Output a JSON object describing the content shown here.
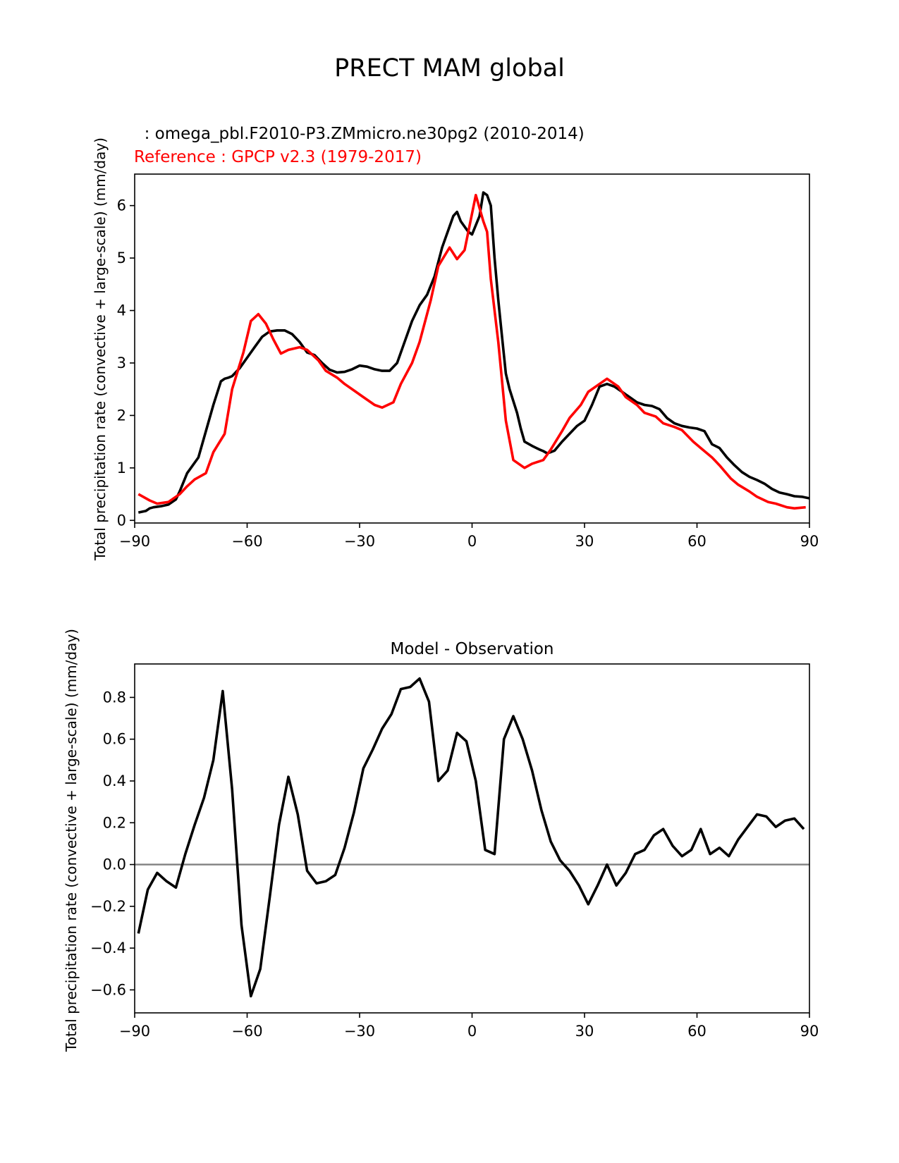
{
  "figure_title": "PRECT MAM global",
  "chart_data": [
    {
      "type": "line",
      "test_label": "  : omega_pbl.F2010-P3.ZMmicro.ne30pg2 (2010-2014)",
      "ref_label": "Reference : GPCP v2.3 (1979-2017)",
      "ylabel": "Total precipitation rate (convective + large-scale) (mm/day)",
      "xlim": [
        -90,
        90
      ],
      "ylim": [
        -0.05,
        6.6
      ],
      "xticks": [
        -90,
        -60,
        -30,
        0,
        30,
        60,
        90
      ],
      "xtick_labels": [
        "−90",
        "−60",
        "−30",
        "0",
        "30",
        "60",
        "90"
      ],
      "yticks": [
        0,
        1,
        2,
        3,
        4,
        5,
        6
      ],
      "ytick_labels": [
        "0",
        "1",
        "2",
        "3",
        "4",
        "5",
        "6"
      ],
      "series": [
        {
          "name": "test",
          "color": "#000000",
          "x": [
            -89,
            -87,
            -86,
            -85,
            -83,
            -81,
            -79,
            -78,
            -76,
            -75,
            -73,
            -71,
            -69,
            -67,
            -66,
            -65,
            -64,
            -62,
            -60,
            -58,
            -56,
            -54,
            -52,
            -50,
            -48,
            -46,
            -44,
            -42,
            -40,
            -38,
            -36,
            -34,
            -32,
            -30,
            -28,
            -26,
            -24,
            -22,
            -20,
            -18,
            -16,
            -14,
            -12,
            -10,
            -8,
            -6,
            -5,
            -4,
            -3,
            -1,
            0,
            2,
            3,
            4,
            5,
            6,
            7,
            8,
            9,
            10,
            12,
            13,
            14,
            16,
            18,
            19,
            20,
            21,
            22,
            24,
            26,
            28,
            30,
            32,
            34,
            36,
            38,
            40,
            42,
            44,
            46,
            48,
            50,
            52,
            54,
            56,
            58,
            60,
            62,
            64,
            66,
            68,
            70,
            72,
            74,
            76,
            78,
            80,
            82,
            84,
            86,
            88,
            90
          ],
          "y": [
            0.15,
            0.18,
            0.23,
            0.25,
            0.27,
            0.3,
            0.4,
            0.55,
            0.9,
            1.0,
            1.2,
            1.7,
            2.2,
            2.65,
            2.7,
            2.72,
            2.75,
            2.9,
            3.1,
            3.3,
            3.5,
            3.6,
            3.62,
            3.62,
            3.55,
            3.4,
            3.2,
            3.15,
            3.0,
            2.87,
            2.82,
            2.83,
            2.88,
            2.95,
            2.93,
            2.88,
            2.85,
            2.85,
            3.0,
            3.4,
            3.8,
            4.1,
            4.3,
            4.65,
            5.2,
            5.6,
            5.8,
            5.88,
            5.7,
            5.5,
            5.45,
            5.8,
            6.25,
            6.2,
            6.0,
            5.0,
            4.2,
            3.5,
            2.8,
            2.5,
            2.05,
            1.75,
            1.5,
            1.42,
            1.35,
            1.32,
            1.28,
            1.3,
            1.33,
            1.5,
            1.65,
            1.8,
            1.9,
            2.2,
            2.55,
            2.6,
            2.55,
            2.45,
            2.35,
            2.25,
            2.2,
            2.18,
            2.12,
            1.95,
            1.85,
            1.8,
            1.77,
            1.75,
            1.7,
            1.45,
            1.38,
            1.2,
            1.05,
            0.92,
            0.83,
            0.77,
            0.7,
            0.6,
            0.53,
            0.5,
            0.46,
            0.45,
            0.42
          ]
        },
        {
          "name": "Reference",
          "color": "#ff0000",
          "x": [
            -89,
            -86,
            -84,
            -81,
            -78,
            -76,
            -74,
            -71,
            -69,
            -66,
            -64,
            -61,
            -59,
            -57,
            -55,
            -53,
            -51,
            -49,
            -46,
            -44,
            -41,
            -39,
            -36,
            -34,
            -31,
            -29,
            -26,
            -24,
            -21,
            -19,
            -16,
            -14,
            -11,
            -9,
            -6,
            -4,
            -2,
            1,
            3,
            4,
            5,
            7,
            9,
            11,
            14,
            16,
            19,
            21,
            24,
            26,
            29,
            31,
            34,
            36,
            39,
            41,
            44,
            46,
            49,
            51,
            54,
            56,
            59,
            61,
            64,
            66,
            69,
            71,
            74,
            76,
            79,
            81,
            84,
            86,
            89
          ],
          "y": [
            0.5,
            0.38,
            0.32,
            0.35,
            0.5,
            0.65,
            0.78,
            0.9,
            1.3,
            1.65,
            2.5,
            3.2,
            3.8,
            3.93,
            3.75,
            3.45,
            3.18,
            3.25,
            3.3,
            3.25,
            3.05,
            2.85,
            2.72,
            2.6,
            2.45,
            2.35,
            2.2,
            2.15,
            2.25,
            2.6,
            3.0,
            3.4,
            4.2,
            4.85,
            5.2,
            4.98,
            5.15,
            6.2,
            5.7,
            5.5,
            4.6,
            3.4,
            1.9,
            1.15,
            1.0,
            1.08,
            1.15,
            1.35,
            1.7,
            1.95,
            2.2,
            2.45,
            2.6,
            2.7,
            2.55,
            2.35,
            2.2,
            2.05,
            1.98,
            1.85,
            1.78,
            1.72,
            1.5,
            1.38,
            1.2,
            1.05,
            0.8,
            0.68,
            0.55,
            0.45,
            0.35,
            0.32,
            0.25,
            0.23,
            0.25
          ]
        }
      ]
    },
    {
      "type": "line",
      "title": "Model - Observation",
      "ylabel": "Total precipitation rate (convective + large-scale) (mm/day)",
      "xlim": [
        -90,
        90
      ],
      "ylim": [
        -0.71,
        0.96
      ],
      "xticks": [
        -90,
        -60,
        -30,
        0,
        30,
        60,
        90
      ],
      "xtick_labels": [
        "−90",
        "−60",
        "−30",
        "0",
        "30",
        "60",
        "90"
      ],
      "yticks": [
        -0.6,
        -0.4,
        -0.2,
        0.0,
        0.2,
        0.4,
        0.6,
        0.8
      ],
      "ytick_labels": [
        "−0.6",
        "−0.4",
        "−0.2",
        "0.0",
        "0.2",
        "0.4",
        "0.6",
        "0.8"
      ],
      "zero_line_color": "#808080",
      "series": [
        {
          "name": "difference",
          "color": "#000000",
          "x": [
            -89,
            -86.5,
            -84,
            -81.5,
            -79,
            -76.5,
            -74,
            -71.5,
            -69,
            -66.5,
            -64,
            -61.5,
            -59,
            -56.5,
            -54,
            -51.5,
            -49,
            -46.5,
            -44,
            -41.5,
            -39,
            -36.5,
            -34,
            -31.5,
            -29,
            -26.5,
            -24,
            -21.5,
            -19,
            -16.5,
            -14,
            -11.5,
            -9,
            -6.5,
            -4,
            -1.5,
            1,
            3.5,
            6,
            8.5,
            11,
            13.5,
            16,
            18.5,
            21,
            23.5,
            26,
            28.5,
            31,
            33.5,
            36,
            38.5,
            41,
            43.5,
            46,
            48.5,
            51,
            53.5,
            56,
            58.5,
            61,
            63.5,
            66,
            68.5,
            71,
            73.5,
            76,
            78.5,
            81,
            83.5,
            86,
            88.5
          ],
          "y": [
            -0.33,
            -0.12,
            -0.04,
            -0.08,
            -0.11,
            0.05,
            0.19,
            0.32,
            0.5,
            0.83,
            0.36,
            -0.29,
            -0.63,
            -0.5,
            -0.16,
            0.19,
            0.42,
            0.24,
            -0.03,
            -0.09,
            -0.08,
            -0.05,
            0.08,
            0.25,
            0.46,
            0.55,
            0.65,
            0.72,
            0.84,
            0.85,
            0.89,
            0.78,
            0.4,
            0.45,
            0.63,
            0.59,
            0.4,
            0.07,
            0.05,
            0.6,
            0.71,
            0.6,
            0.45,
            0.26,
            0.11,
            0.02,
            -0.03,
            -0.1,
            -0.19,
            -0.1,
            0.0,
            -0.1,
            -0.04,
            0.05,
            0.07,
            0.14,
            0.17,
            0.09,
            0.04,
            0.07,
            0.17,
            0.05,
            0.08,
            0.04,
            0.12,
            0.18,
            0.24,
            0.23,
            0.18,
            0.21,
            0.22,
            0.17
          ]
        }
      ]
    }
  ]
}
